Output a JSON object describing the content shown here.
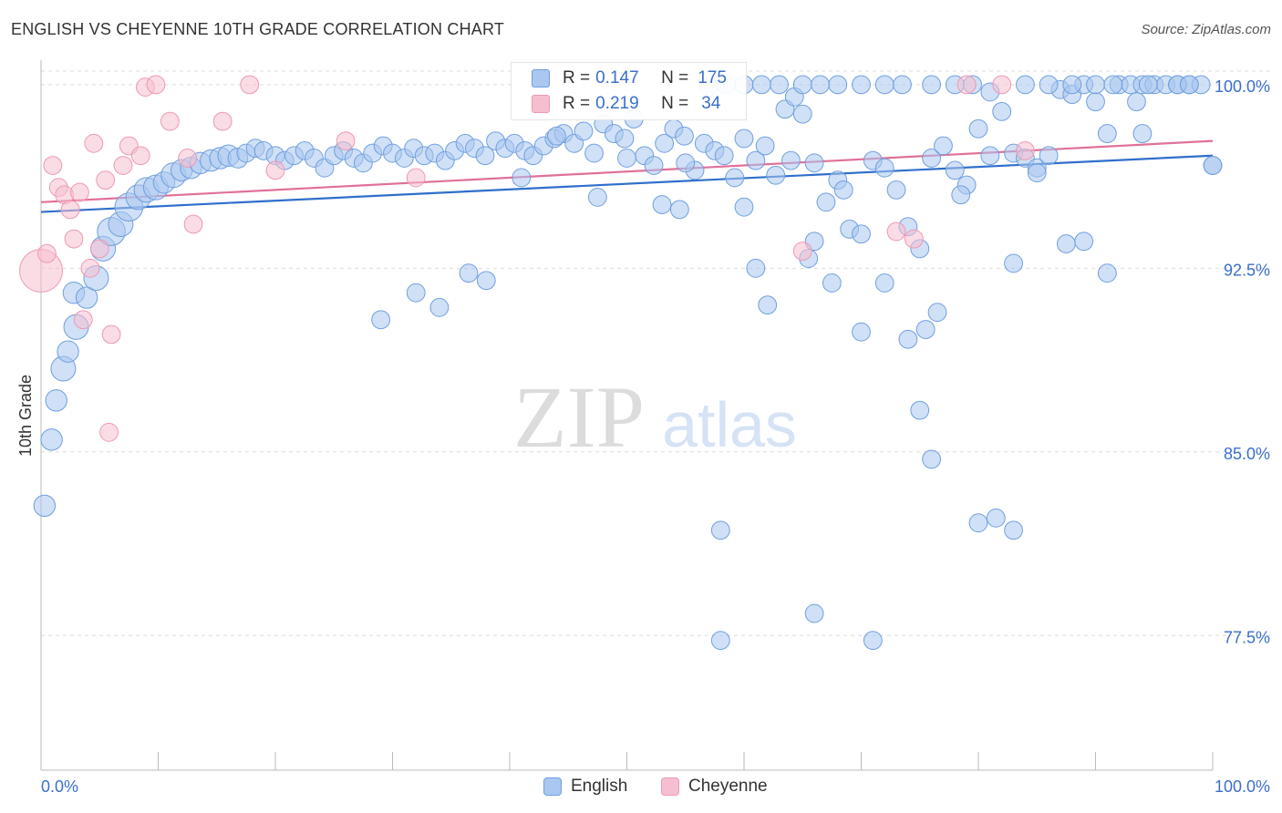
{
  "title": "ENGLISH VS CHEYENNE 10TH GRADE CORRELATION CHART",
  "source": "Source: ZipAtlas.com",
  "watermark": {
    "zip": "ZIP",
    "atlas": "atlas"
  },
  "colors": {
    "english_fill": "#a9c7ef",
    "english_stroke": "#6f9fdf",
    "english_line": "#2f6fcb",
    "cheyenne_fill": "#f6bfd0",
    "cheyenne_stroke": "#ee98b4",
    "cheyenne_line": "#e0709a",
    "tick_label": "#3b6fc9",
    "grid": "#dddddd"
  },
  "stats": {
    "english": {
      "r_label": "R =",
      "r_value": "0.147",
      "n_label": "N =",
      "n_value": "175"
    },
    "cheyenne": {
      "r_label": "R =",
      "r_value": "0.219",
      "n_label": "N =",
      "n_value": "34"
    }
  },
  "legend": {
    "english": "English",
    "cheyenne": "Cheyenne"
  },
  "chart_data": {
    "type": "scatter",
    "title": "ENGLISH VS CHEYENNE 10TH GRADE CORRELATION CHART",
    "xlabel": "",
    "ylabel": "10th Grade",
    "xlim": [
      0,
      100
    ],
    "ylim": [
      72.0,
      101.0
    ],
    "x_tick_labels": [
      "0.0%",
      "100.0%"
    ],
    "y_ticks": [
      {
        "value": 100.0,
        "label": "100.0%"
      },
      {
        "value": 92.5,
        "label": "92.5%"
      },
      {
        "value": 85.0,
        "label": "85.0%"
      },
      {
        "value": 77.5,
        "label": "77.5%"
      }
    ],
    "grid": true,
    "legend_position": "bottom-center",
    "series": [
      {
        "name": "English",
        "color": "#6f9fdf",
        "trendline": {
          "x": [
            0,
            100
          ],
          "y": [
            94.8,
            97.1
          ]
        },
        "points": [
          [
            0.3,
            82.8,
            1.3
          ],
          [
            0.9,
            85.5,
            1.3
          ],
          [
            1.3,
            87.1,
            1.3
          ],
          [
            1.9,
            88.4,
            1.5
          ],
          [
            2.3,
            89.1,
            1.3
          ],
          [
            3.0,
            90.1,
            1.5
          ],
          [
            2.8,
            91.5,
            1.3
          ],
          [
            3.9,
            91.3,
            1.3
          ],
          [
            4.7,
            92.1,
            1.5
          ],
          [
            5.3,
            93.3,
            1.5
          ],
          [
            6.0,
            94.0,
            1.7
          ],
          [
            6.8,
            94.3,
            1.5
          ],
          [
            7.5,
            95.0,
            1.7
          ],
          [
            8.3,
            95.4,
            1.5
          ],
          [
            9.0,
            95.7,
            1.5
          ],
          [
            9.8,
            95.8,
            1.5
          ],
          [
            10.5,
            96.0,
            1.3
          ],
          [
            11.3,
            96.3,
            1.5
          ],
          [
            12.0,
            96.5,
            1.3
          ],
          [
            12.8,
            96.6,
            1.3
          ],
          [
            13.6,
            96.8,
            1.3
          ],
          [
            14.5,
            96.9,
            1.3
          ],
          [
            15.3,
            97.0,
            1.3
          ],
          [
            16.0,
            97.1,
            1.3
          ],
          [
            16.8,
            97.0,
            1.2
          ],
          [
            17.5,
            97.2,
            1.1
          ],
          [
            18.3,
            97.4,
            1.1
          ],
          [
            19.0,
            97.3,
            1.1
          ],
          [
            20.0,
            97.1,
            1.1
          ],
          [
            20.8,
            96.9,
            1.1
          ],
          [
            21.6,
            97.1,
            1.1
          ],
          [
            22.5,
            97.3,
            1.1
          ],
          [
            23.3,
            97.0,
            1.1
          ],
          [
            24.2,
            96.6,
            1.1
          ],
          [
            25.0,
            97.1,
            1.1
          ],
          [
            25.8,
            97.3,
            1.1
          ],
          [
            26.7,
            97.0,
            1.1
          ],
          [
            27.5,
            96.8,
            1.1
          ],
          [
            28.3,
            97.2,
            1.1
          ],
          [
            29.2,
            97.5,
            1.1
          ],
          [
            30.0,
            97.2,
            1.1
          ],
          [
            31.0,
            97.0,
            1.1
          ],
          [
            31.8,
            97.4,
            1.1
          ],
          [
            32.7,
            97.1,
            1.1
          ],
          [
            33.6,
            97.2,
            1.1
          ],
          [
            34.5,
            96.9,
            1.1
          ],
          [
            35.3,
            97.3,
            1.1
          ],
          [
            36.2,
            97.6,
            1.1
          ],
          [
            37.0,
            97.4,
            1.1
          ],
          [
            37.9,
            97.1,
            1.1
          ],
          [
            38.8,
            97.7,
            1.1
          ],
          [
            39.6,
            97.4,
            1.1
          ],
          [
            40.4,
            97.6,
            1.1
          ],
          [
            41.3,
            97.3,
            1.1
          ],
          [
            42.0,
            97.1,
            1.1
          ],
          [
            42.9,
            97.5,
            1.1
          ],
          [
            43.8,
            97.8,
            1.1
          ],
          [
            44.6,
            98.0,
            1.1
          ],
          [
            45.5,
            97.6,
            1.1
          ],
          [
            46.3,
            98.1,
            1.1
          ],
          [
            47.2,
            97.2,
            1.1
          ],
          [
            48.0,
            98.4,
            1.1
          ],
          [
            48.9,
            98.0,
            1.1
          ],
          [
            49.8,
            97.8,
            1.1
          ],
          [
            50.6,
            98.6,
            1.1
          ],
          [
            51.5,
            97.1,
            1.1
          ],
          [
            52.3,
            96.7,
            1.1
          ],
          [
            53.2,
            97.6,
            1.1
          ],
          [
            54.0,
            98.2,
            1.1
          ],
          [
            54.9,
            97.9,
            1.1
          ],
          [
            55.8,
            96.5,
            1.1
          ],
          [
            56.6,
            97.6,
            1.1
          ],
          [
            57.5,
            97.3,
            1.1
          ],
          [
            58.3,
            97.1,
            1.1
          ],
          [
            59.2,
            96.2,
            1.1
          ],
          [
            60.0,
            97.8,
            1.1
          ],
          [
            61.0,
            96.9,
            1.1
          ],
          [
            61.8,
            97.5,
            1.1
          ],
          [
            62.7,
            96.3,
            1.1
          ],
          [
            63.5,
            99.0,
            1.1
          ],
          [
            64.3,
            99.5,
            1.1
          ],
          [
            65.0,
            98.8,
            1.1
          ],
          [
            66.0,
            96.8,
            1.1
          ],
          [
            67.0,
            95.2,
            1.1
          ],
          [
            68.0,
            96.1,
            1.1
          ],
          [
            69.0,
            94.1,
            1.1
          ],
          [
            70.0,
            93.9,
            1.1
          ],
          [
            71.0,
            96.9,
            1.1
          ],
          [
            72.0,
            96.6,
            1.1
          ],
          [
            73.0,
            95.7,
            1.1
          ],
          [
            74.0,
            94.2,
            1.1
          ],
          [
            75.0,
            93.3,
            1.1
          ],
          [
            76.0,
            97.0,
            1.1
          ],
          [
            77.0,
            97.5,
            1.1
          ],
          [
            78.0,
            96.5,
            1.1
          ],
          [
            79.0,
            95.9,
            1.1
          ],
          [
            80.0,
            98.2,
            1.1
          ],
          [
            81.0,
            99.7,
            1.1
          ],
          [
            82.0,
            98.9,
            1.1
          ],
          [
            83.0,
            97.2,
            1.1
          ],
          [
            84.0,
            97.0,
            1.1
          ],
          [
            85.0,
            96.6,
            1.1
          ],
          [
            86.0,
            97.1,
            1.1
          ],
          [
            87.0,
            99.8,
            1.1
          ],
          [
            88.0,
            99.6,
            1.1
          ],
          [
            89.0,
            100.0,
            1.1
          ],
          [
            90.0,
            99.3,
            1.1
          ],
          [
            91.0,
            98.0,
            1.1
          ],
          [
            92.0,
            100.0,
            1.1
          ],
          [
            93.0,
            100.0,
            1.1
          ],
          [
            94.0,
            100.0,
            1.1
          ],
          [
            95.0,
            100.0,
            1.1
          ],
          [
            96.0,
            100.0,
            1.1
          ],
          [
            97.0,
            100.0,
            1.1
          ],
          [
            98.0,
            100.0,
            1.1
          ],
          [
            99.0,
            100.0,
            1.1
          ],
          [
            100.0,
            96.7,
            1.1
          ],
          [
            41.0,
            96.2,
            1.1
          ],
          [
            44.0,
            97.9,
            1.1
          ],
          [
            47.5,
            95.4,
            1.1
          ],
          [
            50.0,
            97.0,
            1.1
          ],
          [
            53.0,
            95.1,
            1.1
          ],
          [
            54.5,
            94.9,
            1.1
          ],
          [
            55.0,
            96.8,
            1.1
          ],
          [
            60.0,
            95.0,
            1.1
          ],
          [
            61.0,
            92.5,
            1.1
          ],
          [
            62.0,
            91.0,
            1.1
          ],
          [
            64.0,
            96.9,
            1.1
          ],
          [
            65.5,
            92.9,
            1.1
          ],
          [
            66.0,
            93.6,
            1.1
          ],
          [
            67.5,
            91.9,
            1.1
          ],
          [
            68.5,
            95.7,
            1.1
          ],
          [
            70.0,
            89.9,
            1.1
          ],
          [
            72.0,
            91.9,
            1.1
          ],
          [
            74.0,
            89.6,
            1.1
          ],
          [
            75.5,
            90.0,
            1.1
          ],
          [
            76.5,
            90.7,
            1.1
          ],
          [
            78.5,
            95.5,
            1.1
          ],
          [
            81.0,
            97.1,
            1.1
          ],
          [
            83.0,
            92.7,
            1.1
          ],
          [
            85.0,
            96.4,
            1.1
          ],
          [
            87.5,
            93.5,
            1.1
          ],
          [
            89.0,
            93.6,
            1.1
          ],
          [
            91.0,
            92.3,
            1.1
          ],
          [
            93.5,
            99.3,
            1.1
          ],
          [
            94.0,
            98.0,
            1.1
          ],
          [
            100.0,
            96.7,
            1.1
          ],
          [
            29.0,
            90.4,
            1.1
          ],
          [
            32.0,
            91.5,
            1.1
          ],
          [
            34.0,
            90.9,
            1.1
          ],
          [
            36.5,
            92.3,
            1.1
          ],
          [
            38.0,
            92.0,
            1.1
          ],
          [
            75.0,
            86.7,
            1.1
          ],
          [
            80.0,
            82.1,
            1.1
          ],
          [
            81.5,
            82.3,
            1.1
          ],
          [
            83.0,
            81.8,
            1.1
          ],
          [
            76.0,
            84.7,
            1.1
          ],
          [
            66.0,
            78.4,
            1.1
          ],
          [
            71.0,
            77.3,
            1.1
          ],
          [
            58.0,
            77.3,
            1.1
          ],
          [
            58.0,
            81.8,
            1.1
          ],
          [
            57.0,
            99.9,
            1.1
          ],
          [
            58.5,
            100.0,
            1.1
          ],
          [
            60.0,
            100.0,
            1.1
          ],
          [
            61.5,
            100.0,
            1.1
          ],
          [
            63.0,
            100.0,
            1.1
          ],
          [
            65.0,
            100.0,
            1.1
          ],
          [
            66.5,
            100.0,
            1.1
          ],
          [
            68.0,
            100.0,
            1.1
          ],
          [
            70.0,
            100.0,
            1.1
          ],
          [
            72.0,
            100.0,
            1.1
          ],
          [
            73.5,
            100.0,
            1.1
          ],
          [
            76.0,
            100.0,
            1.1
          ],
          [
            78.0,
            100.0,
            1.1
          ],
          [
            79.5,
            100.0,
            1.1
          ],
          [
            84.0,
            100.0,
            1.1
          ],
          [
            86.0,
            100.0,
            1.1
          ],
          [
            88.0,
            100.0,
            1.1
          ],
          [
            90.0,
            100.0,
            1.1
          ],
          [
            91.5,
            100.0,
            1.1
          ],
          [
            94.5,
            100.0,
            1.1
          ],
          [
            97.0,
            100.0,
            1.1
          ],
          [
            98.0,
            100.0,
            1.1
          ]
        ]
      },
      {
        "name": "Cheyenne",
        "color": "#ee98b4",
        "trendline": {
          "x": [
            0,
            100
          ],
          "y": [
            95.2,
            97.7
          ]
        },
        "points": [
          [
            0.0,
            92.4,
            2.6
          ],
          [
            0.5,
            93.1,
            1.1
          ],
          [
            1.0,
            96.7,
            1.1
          ],
          [
            1.5,
            95.8,
            1.1
          ],
          [
            2.0,
            95.5,
            1.1
          ],
          [
            2.5,
            94.9,
            1.1
          ],
          [
            2.8,
            93.7,
            1.1
          ],
          [
            3.3,
            95.6,
            1.1
          ],
          [
            3.6,
            90.4,
            1.1
          ],
          [
            4.2,
            92.5,
            1.1
          ],
          [
            4.5,
            97.6,
            1.1
          ],
          [
            5.0,
            93.3,
            1.1
          ],
          [
            5.5,
            96.1,
            1.1
          ],
          [
            6.0,
            89.8,
            1.1
          ],
          [
            5.8,
            85.8,
            1.1
          ],
          [
            7.0,
            96.7,
            1.1
          ],
          [
            7.5,
            97.5,
            1.1
          ],
          [
            8.5,
            97.1,
            1.1
          ],
          [
            8.9,
            99.9,
            1.1
          ],
          [
            9.8,
            100.0,
            1.1
          ],
          [
            11.0,
            98.5,
            1.1
          ],
          [
            13.0,
            94.3,
            1.1
          ],
          [
            15.5,
            98.5,
            1.1
          ],
          [
            17.8,
            100.0,
            1.1
          ],
          [
            26.0,
            97.7,
            1.1
          ],
          [
            32.0,
            96.2,
            1.1
          ],
          [
            12.5,
            97.0,
            1.1
          ],
          [
            65.0,
            93.2,
            1.1
          ],
          [
            73.0,
            94.0,
            1.1
          ],
          [
            74.5,
            93.7,
            1.1
          ],
          [
            79.0,
            100.0,
            1.1
          ],
          [
            82.0,
            100.0,
            1.1
          ],
          [
            84.0,
            97.3,
            1.1
          ],
          [
            20.0,
            96.5,
            1.1
          ]
        ]
      }
    ]
  }
}
